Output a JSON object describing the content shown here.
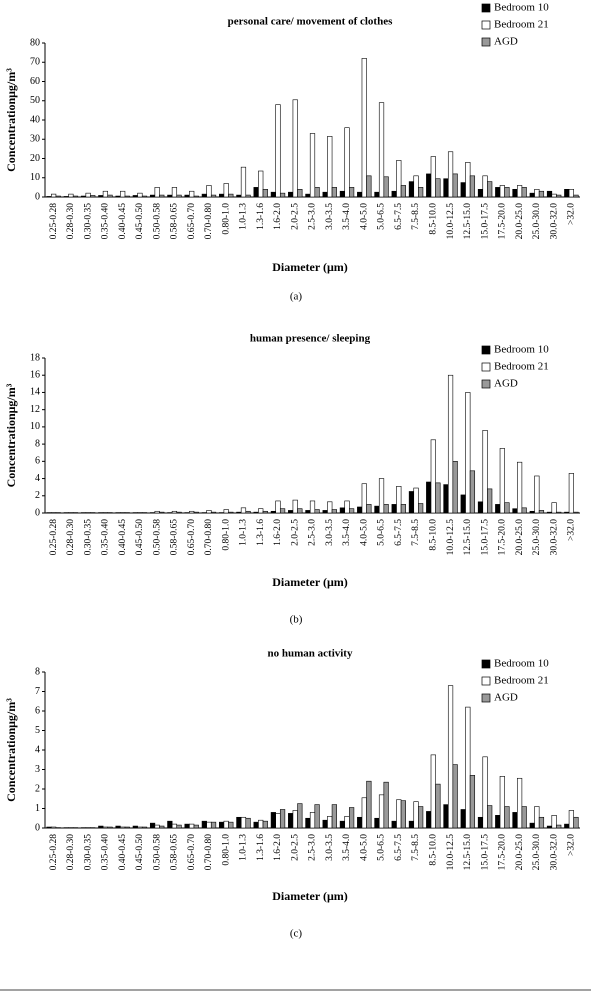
{
  "chart_data": [
    {
      "type": "bar",
      "title": "personal care/ movement of clothes",
      "ylabel": "Concentrationμg/m³",
      "xlabel": "Diameter (μm)",
      "caption": "(a)",
      "categories": [
        "0.25-0.28",
        "0.28-0.30",
        "0.30-0.35",
        "0.35-0.40",
        "0.40-0.45",
        "0.45-0.50",
        "0.50-0.58",
        "0.58-0.65",
        "0.65-0.70",
        "0.70-0.80",
        "0.80-1.0",
        "1.0-1.3",
        "1.3-1.6",
        "1.6-2.0",
        "2.0-2.5",
        "2.5-3.0",
        "3.0-3.5",
        "3.5-4.0",
        "4.0-5.0",
        "5.0-6.5",
        "6.5-7.5",
        "7.5-8.5",
        "8.5-10.0",
        "10.0-12.5",
        "12.5-15.0",
        "15.0-17.5",
        "17.5-20.0",
        "20.0-25.0",
        "25.0-30.0",
        "30.0-32.0",
        ">32.0"
      ],
      "series": [
        {
          "name": "Bedroom 10",
          "color": "#000000",
          "values": [
            0.3,
            0.3,
            0.5,
            0.8,
            0.5,
            0.8,
            1,
            1,
            1,
            1.5,
            1.5,
            1,
            5,
            2.5,
            2.5,
            1.5,
            2.5,
            3,
            2.5,
            2.5,
            3,
            8,
            12,
            9.5,
            7.5,
            4,
            5,
            4,
            2,
            3,
            4
          ]
        },
        {
          "name": "Bedroom 21",
          "color": "#ffffff",
          "values": [
            1.5,
            1.5,
            2,
            3,
            3,
            2,
            5,
            5,
            3,
            6,
            7,
            15.5,
            13.5,
            48,
            50.5,
            33,
            31.5,
            36,
            72,
            49,
            19,
            11,
            21,
            23.5,
            18,
            11,
            6,
            6,
            4,
            1.5,
            4
          ]
        },
        {
          "name": "AGD",
          "color": "#999999",
          "values": [
            0.5,
            0.5,
            0.8,
            1,
            0.5,
            0.5,
            1,
            1,
            0.5,
            1,
            1.5,
            1,
            4,
            2,
            4,
            5,
            5,
            5,
            11,
            10.5,
            6,
            5,
            9.5,
            12,
            11,
            8,
            5,
            5,
            3,
            1,
            1
          ]
        }
      ],
      "ylim": [
        0,
        80
      ],
      "yticks": [
        0,
        10,
        20,
        30,
        40,
        50,
        60,
        70,
        80
      ]
    },
    {
      "type": "bar",
      "title": "human presence/ sleeping",
      "ylabel": "Concentrationμg/m³",
      "xlabel": "Diameter (μm)",
      "caption": "(b)",
      "categories": [
        "0.25-0.28",
        "0.28-0.30",
        "0.30-0.35",
        "0.35-0.40",
        "0.40-0.45",
        "0.45-0.50",
        "0.50-0.58",
        "0.58-0.65",
        "0.65-0.70",
        "0.70-0.80",
        "0.80-1.0",
        "1.0-1.3",
        "1.3-1.6",
        "1.6-2.0",
        "2.0-2.5",
        "2.5-3.0",
        "3.0-3.5",
        "3.5-4.0",
        "4.0-5.0",
        "5.0-6.5",
        "6.5-7.5",
        "7.5-8.5",
        "8.5-10.0",
        "10.0-12.5",
        "12.5-15.0",
        "15.0-17.5",
        "17.5-20.0",
        "20.0-25.0",
        "25.0-30.0",
        "30.0-32.0",
        ">32.0"
      ],
      "series": [
        {
          "name": "Bedroom 10",
          "color": "#000000",
          "values": [
            0.05,
            0.05,
            0.05,
            0.05,
            0.05,
            0.05,
            0.05,
            0.05,
            0.05,
            0.05,
            0.05,
            0.1,
            0.1,
            0.2,
            0.3,
            0.3,
            0.3,
            0.6,
            0.7,
            0.8,
            1,
            2.5,
            3.6,
            3.3,
            2.1,
            1.3,
            1,
            0.5,
            0.2,
            0.1,
            0.1
          ]
        },
        {
          "name": "Bedroom 21",
          "color": "#ffffff",
          "values": [
            0.05,
            0.05,
            0.05,
            0.05,
            0.05,
            0.05,
            0.2,
            0.2,
            0.2,
            0.3,
            0.4,
            0.6,
            0.5,
            1.4,
            1.5,
            1.4,
            1.3,
            1.4,
            3.4,
            4,
            3.1,
            2.9,
            8.5,
            16,
            14,
            9.6,
            7.5,
            5.9,
            4.3,
            1.2,
            4.6
          ]
        },
        {
          "name": "AGD",
          "color": "#999999",
          "values": [
            0.05,
            0.05,
            0.05,
            0.05,
            0.05,
            0.05,
            0.1,
            0.1,
            0.1,
            0.1,
            0.1,
            0.2,
            0.2,
            0.5,
            0.5,
            0.4,
            0.4,
            0.5,
            1,
            1,
            1,
            1.1,
            3.5,
            6,
            4.9,
            2.8,
            1.2,
            0.6,
            0.3,
            0.1,
            0.1
          ]
        }
      ],
      "ylim": [
        0,
        18
      ],
      "yticks": [
        0,
        2,
        4,
        6,
        8,
        10,
        12,
        14,
        16,
        18
      ]
    },
    {
      "type": "bar",
      "title": "no human activity",
      "ylabel": "Concentrationμg/m³",
      "xlabel": "Diameter (μm)",
      "caption": "(c)",
      "categories": [
        "0.25-0.28",
        "0.28-0.30",
        "0.30-0.35",
        "0.35-0.40",
        "0.40-0.45",
        "0.45-0.50",
        "0.50-0.58",
        "0.58-0.65",
        "0.65-0.70",
        "0.70-0.80",
        "0.80-1.0",
        "1.0-1.3",
        "1.3-1.6",
        "1.6-2.0",
        "2.0-2.5",
        "2.5-3.0",
        "3.0-3.5",
        "3.5-4.0",
        "4.0-5.0",
        "5.0-6.5",
        "6.5-7.5",
        "7.5-8.5",
        "8.5-10.0",
        "10.0-12.5",
        "12.5-15.0",
        "15.0-17.5",
        "17.5-20.0",
        "20.0-25.0",
        "25.0-30.0",
        "30.0-32.0",
        ">32.0"
      ],
      "series": [
        {
          "name": "Bedroom 10",
          "color": "#000000",
          "values": [
            0.05,
            0.02,
            0.02,
            0.1,
            0.1,
            0.1,
            0.25,
            0.35,
            0.2,
            0.35,
            0.3,
            0.55,
            0.3,
            0.8,
            0.75,
            0.5,
            0.4,
            0.35,
            0.55,
            0.5,
            0.35,
            0.35,
            0.85,
            1.2,
            0.95,
            0.55,
            0.65,
            0.8,
            0.25,
            0.1,
            0.2
          ]
        },
        {
          "name": "Bedroom 21",
          "color": "#ffffff",
          "values": [
            0.05,
            0.02,
            0.02,
            0.05,
            0.05,
            0.05,
            0.15,
            0.2,
            0.2,
            0.3,
            0.35,
            0.55,
            0.4,
            0.75,
            0.9,
            0.8,
            0.6,
            0.6,
            1.55,
            1.7,
            1.45,
            1.35,
            3.75,
            7.3,
            6.2,
            3.65,
            2.65,
            2.55,
            1.1,
            0.65,
            0.9
          ]
        },
        {
          "name": "AGD",
          "color": "#999999",
          "values": [
            0.02,
            0.02,
            0.02,
            0.05,
            0.05,
            0.05,
            0.1,
            0.15,
            0.15,
            0.3,
            0.3,
            0.5,
            0.35,
            0.95,
            1.25,
            1.2,
            1.2,
            1.05,
            2.4,
            2.35,
            1.4,
            1.1,
            2.25,
            3.25,
            2.7,
            1.15,
            1.1,
            1.1,
            0.55,
            0.15,
            0.55
          ]
        }
      ],
      "ylim": [
        0,
        8
      ],
      "yticks": [
        0,
        1,
        2,
        3,
        4,
        5,
        6,
        7,
        8
      ]
    }
  ]
}
